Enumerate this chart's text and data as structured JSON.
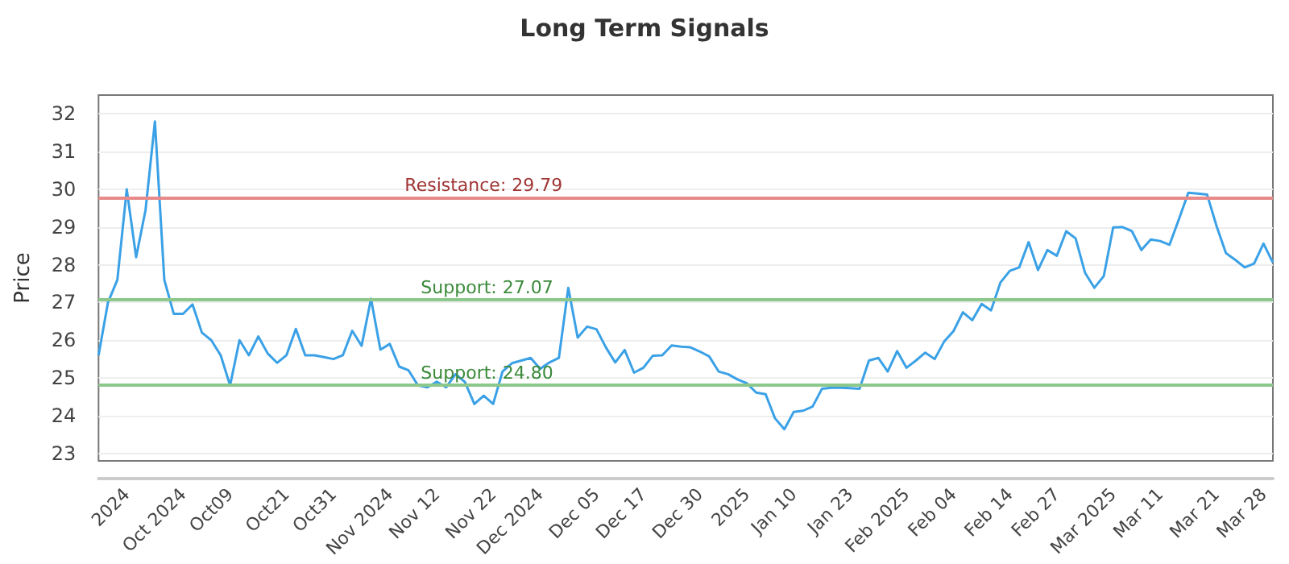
{
  "chart_data": {
    "type": "line",
    "title": "Long Term Signals",
    "ylabel": "Price",
    "categories": [
      null,
      null,
      null,
      "2024",
      null,
      null,
      null,
      null,
      null,
      "Oct 2024",
      null,
      null,
      null,
      null,
      "Oct09",
      null,
      null,
      null,
      null,
      null,
      "Oct21",
      null,
      null,
      null,
      null,
      "Oct31",
      null,
      null,
      null,
      null,
      null,
      "Nov 2024",
      null,
      null,
      null,
      null,
      "Nov 12",
      null,
      null,
      null,
      null,
      null,
      "Nov 22",
      null,
      null,
      null,
      null,
      "Dec 2024",
      null,
      null,
      null,
      null,
      null,
      "Dec 05",
      null,
      null,
      null,
      null,
      "Dec 17",
      null,
      null,
      null,
      null,
      null,
      "Dec 30",
      null,
      null,
      null,
      null,
      "2025",
      null,
      null,
      null,
      null,
      "Jan 10",
      null,
      null,
      null,
      null,
      null,
      "Jan 23",
      null,
      null,
      null,
      null,
      null,
      "Feb 2025",
      null,
      null,
      null,
      null,
      "Feb 04",
      null,
      null,
      null,
      null,
      null,
      "Feb 14",
      null,
      null,
      null,
      null,
      "Feb 27",
      null,
      null,
      null,
      null,
      null,
      "Mar 2025",
      null,
      null,
      null,
      null,
      "Mar 11",
      null,
      null,
      null,
      null,
      null,
      "Mar 21",
      null,
      null,
      null,
      null,
      "Mar 28",
      null
    ],
    "series": [
      {
        "color": "#3ba1e6",
        "values": [
          25.6,
          27.0,
          27.6,
          30.0,
          28.2,
          29.45,
          31.8,
          27.6,
          26.7,
          26.7,
          26.95,
          26.2,
          26.0,
          25.6,
          24.8,
          26.0,
          25.6,
          26.1,
          25.65,
          25.4,
          25.6,
          26.3,
          25.6,
          25.6,
          25.55,
          25.5,
          25.6,
          26.25,
          25.85,
          27.1,
          25.75,
          25.9,
          25.3,
          25.2,
          24.8,
          24.75,
          24.9,
          24.75,
          25.1,
          24.89,
          24.31,
          24.53,
          24.31,
          25.17,
          25.39,
          25.46,
          25.53,
          25.24,
          25.41,
          25.53,
          27.39,
          26.07,
          26.36,
          26.29,
          25.81,
          25.41,
          25.74,
          25.14,
          25.27,
          25.59,
          25.6,
          25.86,
          25.83,
          25.81,
          25.7,
          25.57,
          25.17,
          25.1,
          24.96,
          24.86,
          24.61,
          24.57,
          23.93,
          23.64,
          24.1,
          24.13,
          24.24,
          24.71,
          24.74,
          24.74,
          24.73,
          24.71,
          25.46,
          25.53,
          25.17,
          25.71,
          25.27,
          25.46,
          25.67,
          25.5,
          25.96,
          26.24,
          26.74,
          26.53,
          26.96,
          26.79,
          27.53,
          27.84,
          27.93,
          28.6,
          27.86,
          28.39,
          28.24,
          28.89,
          28.7,
          27.79,
          27.39,
          27.7,
          28.99,
          29.0,
          28.89,
          28.39,
          28.67,
          28.63,
          28.53,
          29.21,
          29.91,
          29.89,
          29.86,
          29.03,
          28.31,
          28.13,
          27.93,
          28.03,
          28.56,
          28.06
        ]
      }
    ],
    "ylim": [
      22.8,
      32.5
    ],
    "yticks": [
      23,
      24,
      25,
      26,
      27,
      28,
      29,
      30,
      31,
      32
    ],
    "grid": "y",
    "marker": "none",
    "line_style": "solid",
    "ref_lines": [
      {
        "axis": "y",
        "value": 29.79,
        "label": "Resistance: 29.79",
        "color": "#e88a8a"
      },
      {
        "axis": "y",
        "value": 27.07,
        "label": "Support: 27.07",
        "color": "#8cc88c"
      },
      {
        "axis": "y",
        "value": 24.8,
        "label": "Support: 24.80",
        "color": "#8cc88c"
      }
    ]
  }
}
